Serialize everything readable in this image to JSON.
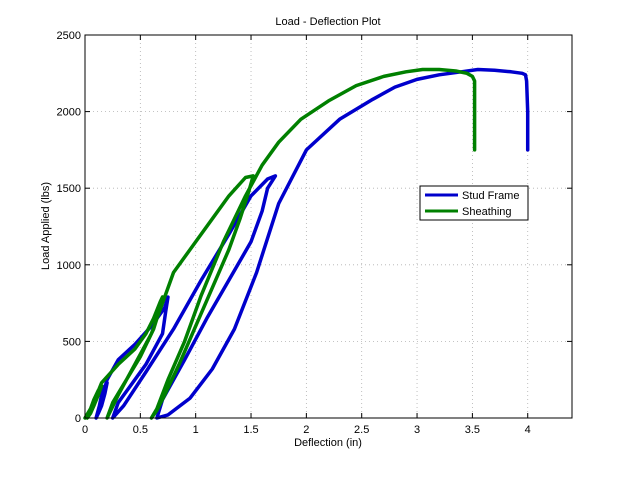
{
  "chart_data": {
    "type": "line",
    "title": "Load - Deflection Plot",
    "xlabel": "Deflection (in)",
    "ylabel": "Load Applied (lbs)",
    "xlim": [
      0,
      4.4
    ],
    "ylim": [
      0,
      2500
    ],
    "x_ticks": [
      "0",
      "0.5",
      "1",
      "1.5",
      "2",
      "2.5",
      "3",
      "3.5",
      "4"
    ],
    "y_ticks": [
      "0",
      "500",
      "1000",
      "1500",
      "2000",
      "2500"
    ],
    "grid": true,
    "legend_position": "right-middle",
    "series": [
      {
        "name": "Stud Frame",
        "color": "#0000cc",
        "x": [
          0.1,
          0.13,
          0.15,
          0.17,
          0.2,
          0.18,
          0.15,
          0.12,
          0.1,
          0.2,
          0.3,
          0.45,
          0.6,
          0.72,
          0.75,
          0.73,
          0.7,
          0.55,
          0.4,
          0.3,
          0.25,
          0.35,
          0.55,
          0.8,
          1.05,
          1.3,
          1.5,
          1.65,
          1.72,
          1.65,
          1.6,
          1.5,
          1.3,
          1.1,
          0.9,
          0.7,
          0.65,
          0.75,
          0.95,
          1.15,
          1.35,
          1.55,
          1.75,
          2.0,
          2.3,
          2.6,
          2.8,
          3.0,
          3.2,
          3.4,
          3.55,
          3.7,
          3.85,
          3.95,
          3.98,
          3.99,
          4.0,
          4.0
        ],
        "y": [
          0,
          80,
          150,
          200,
          230,
          160,
          80,
          30,
          0,
          250,
          380,
          480,
          600,
          720,
          790,
          700,
          550,
          350,
          200,
          100,
          0,
          80,
          300,
          580,
          900,
          1200,
          1450,
          1560,
          1580,
          1500,
          1350,
          1150,
          900,
          650,
          380,
          120,
          0,
          20,
          130,
          320,
          580,
          950,
          1400,
          1750,
          1950,
          2080,
          2160,
          2210,
          2240,
          2260,
          2275,
          2270,
          2260,
          2250,
          2240,
          2200,
          2000,
          1750
        ]
      },
      {
        "name": "Sheathing",
        "color": "#008000",
        "x": [
          0.0,
          0.05,
          0.08,
          0.12,
          0.15,
          0.12,
          0.08,
          0.05,
          0.02,
          0.15,
          0.3,
          0.45,
          0.55,
          0.62,
          0.68,
          0.7,
          0.68,
          0.62,
          0.5,
          0.35,
          0.25,
          0.2,
          0.3,
          0.45,
          0.6,
          0.7,
          0.8,
          0.95,
          1.15,
          1.3,
          1.45,
          1.52,
          1.48,
          1.4,
          1.3,
          1.15,
          1.0,
          0.85,
          0.72,
          0.65,
          0.6,
          0.65,
          0.75,
          0.9,
          1.05,
          1.25,
          1.45,
          1.6,
          1.75,
          1.95,
          2.2,
          2.45,
          2.7,
          2.9,
          3.05,
          3.2,
          3.35,
          3.45,
          3.5,
          3.52,
          3.52,
          3.52
        ],
        "y": [
          0,
          60,
          120,
          180,
          210,
          150,
          80,
          30,
          0,
          230,
          350,
          450,
          550,
          650,
          760,
          790,
          720,
          580,
          400,
          220,
          100,
          0,
          150,
          350,
          550,
          750,
          950,
          1100,
          1300,
          1450,
          1570,
          1580,
          1480,
          1300,
          1100,
          850,
          600,
          350,
          150,
          50,
          0,
          60,
          250,
          500,
          800,
          1150,
          1450,
          1650,
          1800,
          1950,
          2070,
          2170,
          2230,
          2260,
          2275,
          2275,
          2265,
          2250,
          2230,
          2200,
          2000,
          1750
        ]
      }
    ]
  }
}
